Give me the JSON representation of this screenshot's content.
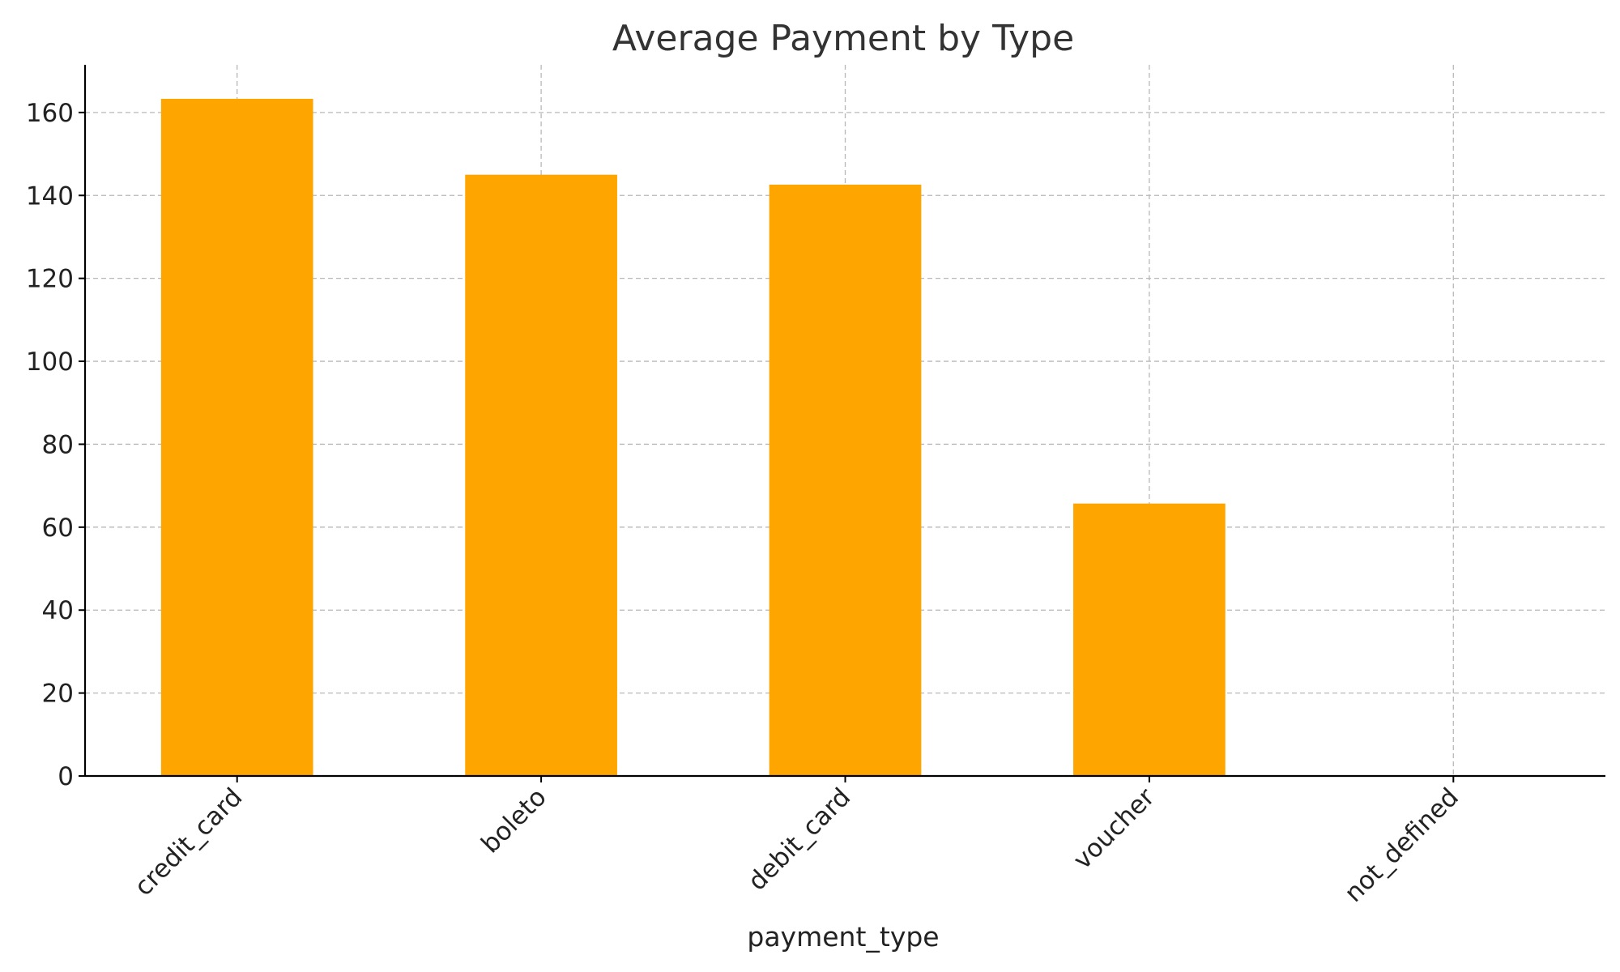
{
  "chart_data": {
    "type": "bar",
    "title": "Average Payment by Type",
    "xlabel": "payment_type",
    "ylabel": "",
    "categories": [
      "credit_card",
      "boleto",
      "debit_card",
      "voucher",
      "not_defined"
    ],
    "values": [
      163.3,
      145.0,
      142.6,
      65.7,
      0
    ],
    "ylim": [
      0,
      171.5
    ],
    "yticks": [
      0,
      20,
      40,
      60,
      80,
      100,
      120,
      140,
      160
    ],
    "grid": true,
    "bar_color": "#FFA500",
    "legend": "none"
  }
}
